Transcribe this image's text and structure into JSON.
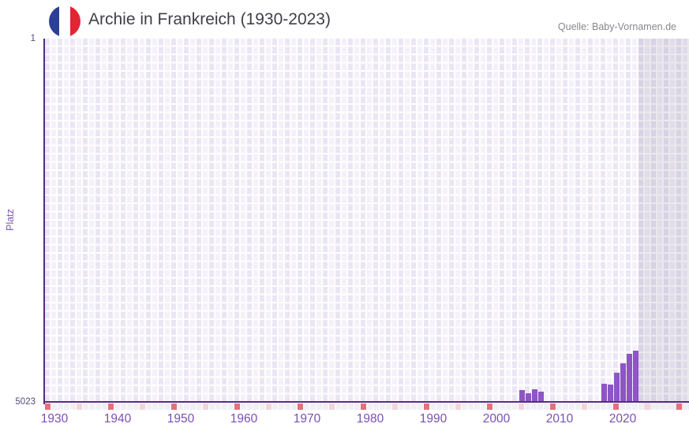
{
  "header": {
    "title": "Archie in Frankreich (1930-2023)",
    "source": "Quelle: Baby-Vornamen.de"
  },
  "axes": {
    "y_label": "Platz",
    "y_top": "1",
    "y_bottom": "5023",
    "x_ticks": [
      "1930",
      "1940",
      "1950",
      "1960",
      "1970",
      "1980",
      "1990",
      "2000",
      "2010",
      "2020"
    ]
  },
  "chart_data": {
    "type": "bar",
    "title": "Archie in Frankreich (1930-2023)",
    "xlabel": "",
    "ylabel": "Platz",
    "x_range": [
      1929,
      2030
    ],
    "y_axis": {
      "top_rank": 1,
      "bottom_rank": 5023,
      "inverted": true
    },
    "series": [
      {
        "name": "Platz",
        "points": [
          {
            "year": 2004,
            "rank": 4860
          },
          {
            "year": 2005,
            "rank": 4905
          },
          {
            "year": 2006,
            "rank": 4850
          },
          {
            "year": 2007,
            "rank": 4880
          },
          {
            "year": 2017,
            "rank": 4775
          },
          {
            "year": 2018,
            "rank": 4785
          },
          {
            "year": 2019,
            "rank": 4620
          },
          {
            "year": 2020,
            "rank": 4490
          },
          {
            "year": 2021,
            "rank": 4360
          },
          {
            "year": 2022,
            "rank": 4315
          }
        ]
      }
    ],
    "no_data_band": {
      "from_year": 2023,
      "to_year": 2030
    },
    "decade_marks": [
      1929,
      1939,
      1949,
      1959,
      1969,
      1979,
      1989,
      1999,
      2009,
      2019,
      2029
    ],
    "mid_decade_marks": [
      1934,
      1944,
      1954,
      1964,
      1974,
      1984,
      1994,
      2004,
      2014,
      2024
    ],
    "legend": "none",
    "grid": true
  },
  "colors": {
    "bar": "#8d55c6",
    "axis": "#552b85",
    "tick_text": "#7a4fb5",
    "grid_column_light": "#f4f1fa",
    "grid_column_dark": "#eae6f4",
    "mark_decade": "#e4707e",
    "mark_mid_decade": "#f1d4dc",
    "flag_blue": "#2c3e96",
    "flag_red": "#e22533"
  }
}
